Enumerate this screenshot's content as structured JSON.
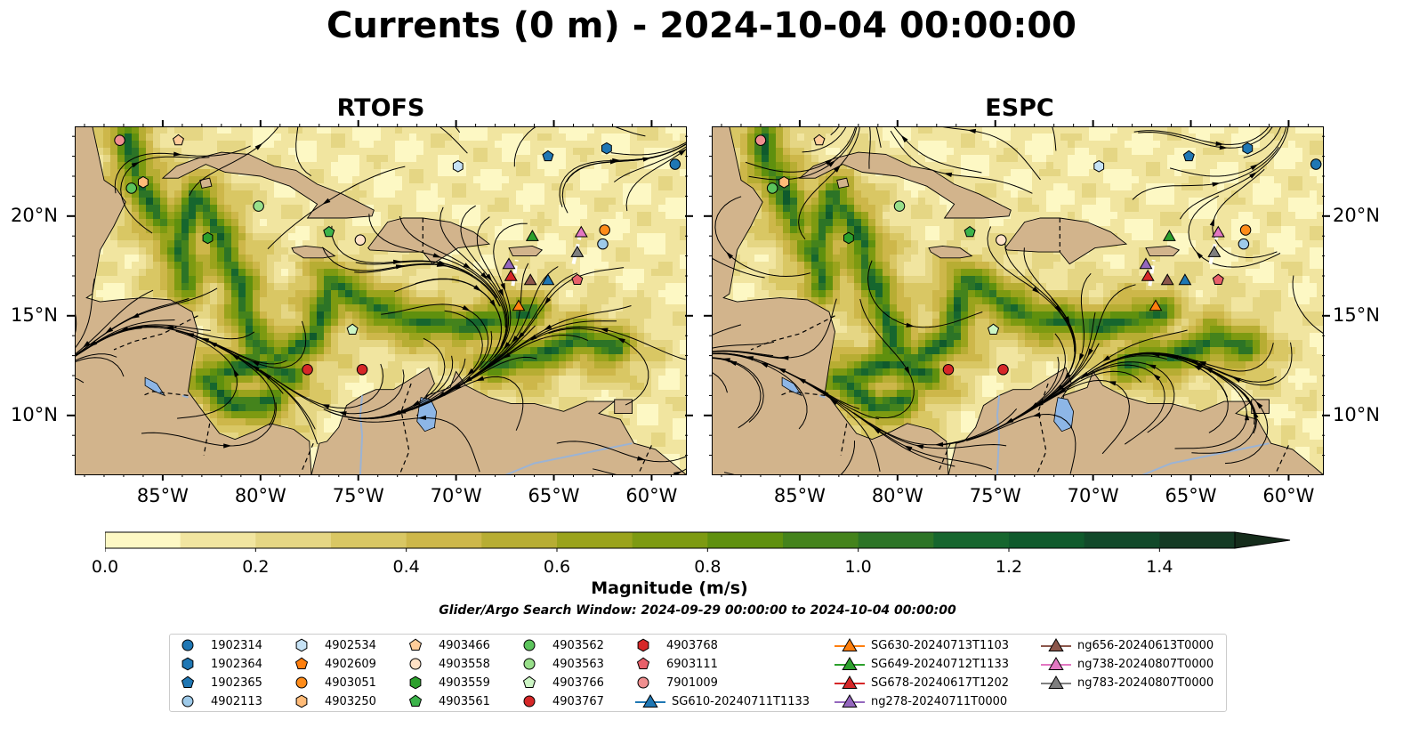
{
  "title": "Currents (0 m) - 2024-10-04 00:00:00",
  "panels": [
    {
      "title": "RTOFS"
    },
    {
      "title": "ESPC"
    }
  ],
  "axes": {
    "lon_ticks": [
      "85°W",
      "80°W",
      "75°W",
      "70°W",
      "65°W",
      "60°W"
    ],
    "lat_ticks": [
      "20°N",
      "15°N",
      "10°N"
    ],
    "lon_range": [
      -89.5,
      -58.2
    ],
    "lat_range": [
      7.0,
      24.5
    ]
  },
  "colorbar": {
    "label": "Magnitude (m/s)",
    "ticks": [
      "0.0",
      "0.2",
      "0.4",
      "0.6",
      "0.8",
      "1.0",
      "1.2",
      "1.4"
    ],
    "range": [
      0,
      1.5
    ],
    "extend": "max",
    "colors": [
      "#fdf8c4",
      "#f1e5a0",
      "#e5d684",
      "#d9c764",
      "#cdb74a",
      "#b7ad33",
      "#9aa31c",
      "#7d9a11",
      "#5f900e",
      "#44831c",
      "#2c7426",
      "#16662e",
      "#0f5a2c",
      "#11492a",
      "#143a24",
      "#152c1b"
    ]
  },
  "subtitle": "Glider/Argo Search Window: 2024-09-29 00:00:00 to 2024-10-04 00:00:00",
  "colors": {
    "land": "#d2b48c",
    "lake": "#8db6e6",
    "river": "#9bb3d4",
    "ocean_low": "#f6eeb4",
    "current_fast": "#3b7a1e"
  },
  "legend": {
    "columns": [
      [
        {
          "label": "1902314",
          "marker": "circle",
          "color": "#1f77b4"
        },
        {
          "label": "1902364",
          "marker": "hexagon",
          "color": "#1f77b4"
        },
        {
          "label": "1902365",
          "marker": "pentagon",
          "color": "#1f77b4"
        },
        {
          "label": "4902113",
          "marker": "circle",
          "color": "#9ecae9"
        }
      ],
      [
        {
          "label": "4902534",
          "marker": "hexagon",
          "color": "#c6e2f5"
        },
        {
          "label": "4902609",
          "marker": "pentagon",
          "color": "#ff7f0e"
        },
        {
          "label": "4903051",
          "marker": "circle",
          "color": "#ff8c1a"
        },
        {
          "label": "4903250",
          "marker": "hexagon",
          "color": "#ffbb78"
        }
      ],
      [
        {
          "label": "4903466",
          "marker": "pentagon",
          "color": "#ffcc99"
        },
        {
          "label": "4903558",
          "marker": "circle",
          "color": "#ffe2c6"
        },
        {
          "label": "4903559",
          "marker": "hexagon",
          "color": "#2ca02c"
        },
        {
          "label": "4903561",
          "marker": "pentagon",
          "color": "#3cb34a"
        }
      ],
      [
        {
          "label": "4903562",
          "marker": "circle",
          "color": "#5cc45c"
        },
        {
          "label": "4903563",
          "marker": "circle",
          "color": "#98df8a"
        },
        {
          "label": "4903766",
          "marker": "pentagon",
          "color": "#ccf5c4"
        },
        {
          "label": "4903767",
          "marker": "circle",
          "color": "#d62728"
        }
      ],
      [
        {
          "label": "4903768",
          "marker": "hexagon",
          "color": "#d62728"
        },
        {
          "label": "6903111",
          "marker": "pentagon",
          "color": "#e8606a"
        },
        {
          "label": "7901009",
          "marker": "circle",
          "color": "#f08f8f"
        },
        {
          "label": "SG610-20240711T1133",
          "marker": "triangle-line",
          "color": "#1f77b4"
        }
      ],
      [
        {
          "label": "SG630-20240713T1103",
          "marker": "triangle-line",
          "color": "#ff7f0e"
        },
        {
          "label": "SG649-20240712T1133",
          "marker": "triangle-line",
          "color": "#2ca02c"
        },
        {
          "label": "SG678-20240617T1202",
          "marker": "triangle-line",
          "color": "#d62728"
        },
        {
          "label": "ng278-20240711T0000",
          "marker": "triangle-line",
          "color": "#9467bd"
        }
      ],
      [
        {
          "label": "ng656-20240613T0000",
          "marker": "triangle-line",
          "color": "#8c564b"
        },
        {
          "label": "ng738-20240807T0000",
          "marker": "triangle-line",
          "color": "#e377c2"
        },
        {
          "label": "ng783-20240807T0000",
          "marker": "triangle-line",
          "color": "#7f7f7f"
        }
      ]
    ]
  },
  "markers": [
    {
      "id": "1902314",
      "lon": -58.8,
      "lat": 22.6,
      "marker": "circle",
      "color": "#1f77b4"
    },
    {
      "id": "1902364",
      "lon": -62.3,
      "lat": 23.4,
      "marker": "hexagon",
      "color": "#1f77b4"
    },
    {
      "id": "1902365",
      "lon": -65.3,
      "lat": 23.0,
      "marker": "pentagon",
      "color": "#1f77b4"
    },
    {
      "id": "4902113",
      "lon": -62.5,
      "lat": 18.6,
      "marker": "circle",
      "color": "#9ecae9"
    },
    {
      "id": "4902534",
      "lon": -69.9,
      "lat": 22.5,
      "marker": "hexagon",
      "color": "#c6e2f5"
    },
    {
      "id": "4903051",
      "lon": -62.4,
      "lat": 19.3,
      "marker": "circle",
      "color": "#ff8c1a"
    },
    {
      "id": "4903250",
      "lon": -86.0,
      "lat": 21.7,
      "marker": "hexagon",
      "color": "#ffbb78"
    },
    {
      "id": "4903466",
      "lon": -84.2,
      "lat": 23.8,
      "marker": "pentagon",
      "color": "#ffcc99"
    },
    {
      "id": "4903558",
      "lon": -74.9,
      "lat": 18.8,
      "marker": "circle",
      "color": "#ffe2c6"
    },
    {
      "id": "4903559",
      "lon": -82.7,
      "lat": 18.9,
      "marker": "hexagon",
      "color": "#2ca02c"
    },
    {
      "id": "4903561",
      "lon": -76.5,
      "lat": 19.2,
      "marker": "pentagon",
      "color": "#3cb34a"
    },
    {
      "id": "4903562",
      "lon": -86.6,
      "lat": 21.4,
      "marker": "circle",
      "color": "#5cc45c"
    },
    {
      "id": "4903563",
      "lon": -80.1,
      "lat": 20.5,
      "marker": "circle",
      "color": "#98df8a"
    },
    {
      "id": "4903766",
      "lon": -75.3,
      "lat": 14.3,
      "marker": "pentagon",
      "color": "#ccf5c4"
    },
    {
      "id": "4903767a",
      "lon": -77.6,
      "lat": 12.3,
      "marker": "circle",
      "color": "#d62728"
    },
    {
      "id": "4903767b",
      "lon": -74.8,
      "lat": 12.3,
      "marker": "circle",
      "color": "#d62728"
    },
    {
      "id": "6903111",
      "lon": -63.8,
      "lat": 16.8,
      "marker": "pentagon",
      "color": "#e8606a"
    },
    {
      "id": "7901009",
      "lon": -87.2,
      "lat": 23.8,
      "marker": "circle",
      "color": "#f08f8f"
    },
    {
      "id": "SG610",
      "lon": -65.3,
      "lat": 16.8,
      "marker": "triangle",
      "color": "#1f77b4"
    },
    {
      "id": "SG630",
      "lon": -66.8,
      "lat": 15.5,
      "marker": "triangle",
      "color": "#ff7f0e"
    },
    {
      "id": "SG649",
      "lon": -66.1,
      "lat": 19.0,
      "marker": "triangle",
      "color": "#2ca02c"
    },
    {
      "id": "SG678",
      "lon": -67.2,
      "lat": 17.0,
      "marker": "triangle",
      "color": "#d62728"
    },
    {
      "id": "ng278",
      "lon": -67.3,
      "lat": 17.6,
      "marker": "triangle",
      "color": "#9467bd"
    },
    {
      "id": "ng656",
      "lon": -66.2,
      "lat": 16.8,
      "marker": "triangle",
      "color": "#8c564b"
    },
    {
      "id": "ng738",
      "lon": -63.6,
      "lat": 19.2,
      "marker": "triangle",
      "color": "#e377c2"
    },
    {
      "id": "ng783",
      "lon": -63.8,
      "lat": 18.2,
      "marker": "triangle",
      "color": "#7f7f7f"
    }
  ]
}
